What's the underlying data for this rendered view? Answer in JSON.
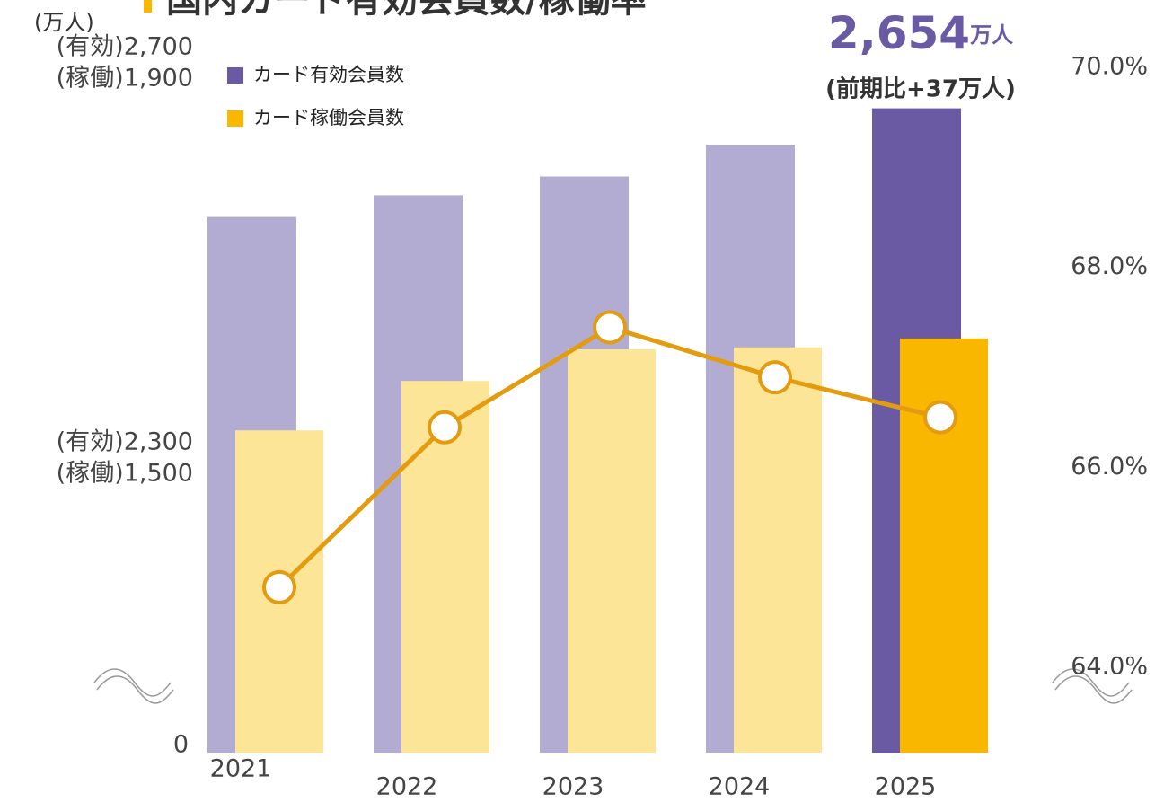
{
  "chart_data": {
    "type": "bar-line",
    "title": "国内カード有効会員数/稼働率",
    "unit_label": "(万人)",
    "categories": [
      "2021",
      "2022",
      "2023",
      "2024",
      "2025"
    ],
    "series": [
      {
        "name": "カード有効会員数",
        "type": "bar",
        "axis": "y",
        "color": "#b3acd2",
        "highlight_color": "#6a5aa4",
        "values": [
          2544,
          2566,
          2585,
          2617,
          2654
        ]
      },
      {
        "name": "カード稼働会員数",
        "type": "bar",
        "axis": "y_active",
        "color": "#fde598",
        "highlight_color": "#f9b700",
        "values": [
          1528,
          1578,
          1610,
          1612,
          1621
        ]
      },
      {
        "name": "稼働率",
        "type": "line",
        "axis": "y2",
        "color": "#e39b0f",
        "values": [
          64.8,
          66.4,
          67.4,
          66.9,
          66.5
        ]
      }
    ],
    "highlight_index": 4,
    "ylim": [
      2300,
      2700
    ],
    "yticks": [
      {
        "value": 2300,
        "label": "(有効)2,300"
      },
      {
        "value": 2700,
        "label": "(有効)2,700"
      }
    ],
    "y_active_lim": [
      1500,
      1900
    ],
    "y_active_ticks": [
      {
        "value": 1500,
        "label": "(稼働)1,500"
      },
      {
        "value": 1900,
        "label": "(稼働)1,900"
      }
    ],
    "baseline_tick": 0,
    "y2lim": [
      64,
      70
    ],
    "y2ticks": [
      {
        "value": 64,
        "label": "64.0%"
      },
      {
        "value": 66,
        "label": "66.0%"
      },
      {
        "value": 68,
        "label": "68.0%"
      },
      {
        "value": 70,
        "label": "70.0%"
      }
    ],
    "axis_break": true,
    "annotation": {
      "value": "2,654",
      "unit": "万人",
      "note": "(前期比+37万人)"
    }
  }
}
